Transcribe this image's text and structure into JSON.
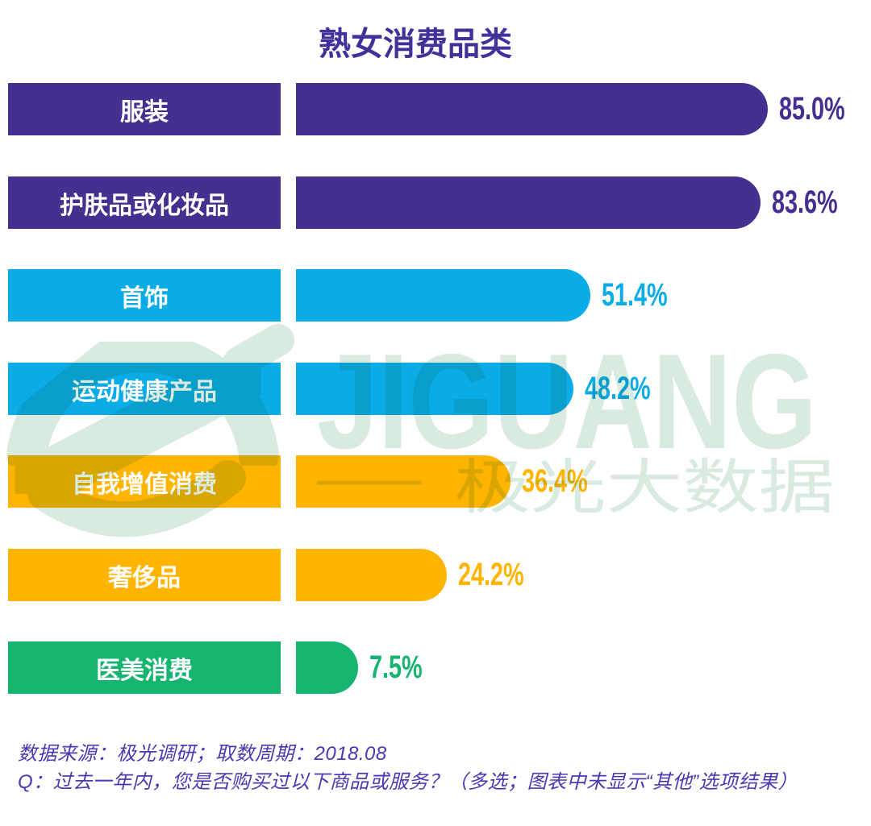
{
  "title": "熟女消费品类",
  "chart_data": {
    "type": "bar",
    "orientation": "horizontal",
    "title": "熟女消费品类",
    "categories": [
      "服装",
      "护肤品或化妆品",
      "首饰",
      "运动健康产品",
      "自我增值消费",
      "奢侈品",
      "医美消费"
    ],
    "values": [
      85.0,
      83.6,
      51.4,
      48.2,
      36.4,
      24.2,
      7.5
    ],
    "value_labels": [
      "85.0%",
      "83.6%",
      "51.4%",
      "48.2%",
      "36.4%",
      "24.2%",
      "7.5%"
    ],
    "colors": [
      "#46308f",
      "#46308f",
      "#0aace8",
      "#0aace8",
      "#ffb400",
      "#ffb400",
      "#16b56f"
    ],
    "xlim": [
      0,
      100
    ],
    "legend": false,
    "grid": false
  },
  "watermark": {
    "brand": "JIGUANG",
    "brand_cn": "极光大数据",
    "color": "#d9eae0"
  },
  "footer": {
    "source_line": "数据来源：极光调研；取数周期：2018.08",
    "question_line": "Q：过去一年内，您是否购买过以下商品或服务？（多选；图表中未显示“其他”选项结果）"
  }
}
